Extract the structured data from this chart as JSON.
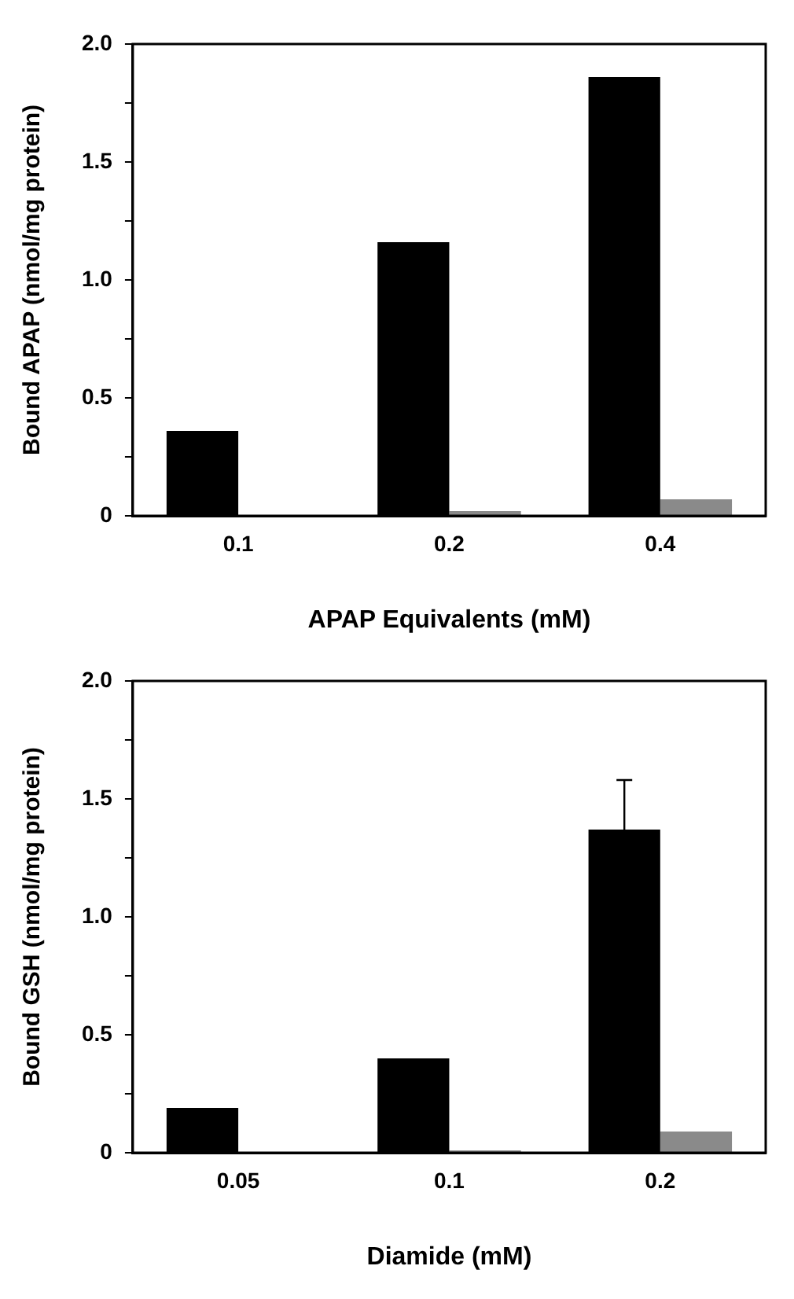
{
  "chart_data": [
    {
      "type": "bar",
      "xlabel": "APAP Equivalents (mM)",
      "ylabel": "Bound APAP (nmol/mg protein)",
      "categories": [
        "0.1",
        "0.2",
        "0.4"
      ],
      "series": [
        {
          "color": "#000000",
          "values": [
            0.36,
            1.16,
            1.86
          ]
        },
        {
          "color": "#8a8a8a",
          "values": [
            null,
            0.02,
            0.07
          ]
        }
      ],
      "ylim": [
        0,
        2
      ],
      "yticks": [
        0,
        {
          "value": 0.25,
          "label": null
        },
        0.5,
        {
          "value": 0.75,
          "label": null
        },
        {
          "value": 1,
          "label": "1.0"
        },
        {
          "value": 1.25,
          "label": null
        },
        1.5,
        {
          "value": 1.75,
          "label": null
        },
        {
          "value": 2,
          "label": "2.0"
        }
      ],
      "grid": false,
      "legend": false
    },
    {
      "type": "bar",
      "xlabel": "Diamide (mM)",
      "ylabel": "Bound GSH (nmol/mg protein)",
      "categories": [
        "0.05",
        "0.1",
        "0.2"
      ],
      "series": [
        {
          "color": "#000000",
          "values": [
            0.19,
            0.4,
            1.37
          ],
          "errors": [
            null,
            null,
            [
              1.37,
              1.58
            ]
          ]
        },
        {
          "color": "#8a8a8a",
          "values": [
            null,
            0.01,
            0.09
          ]
        }
      ],
      "ylim": [
        0,
        2
      ],
      "yticks": [
        0,
        {
          "value": 0.25,
          "label": null
        },
        0.5,
        {
          "value": 0.75,
          "label": null
        },
        {
          "value": 1,
          "label": "1.0"
        },
        {
          "value": 1.25,
          "label": null
        },
        1.5,
        {
          "value": 1.75,
          "label": null
        },
        {
          "value": 2,
          "label": "2.0"
        }
      ],
      "grid": false,
      "legend": false
    }
  ]
}
